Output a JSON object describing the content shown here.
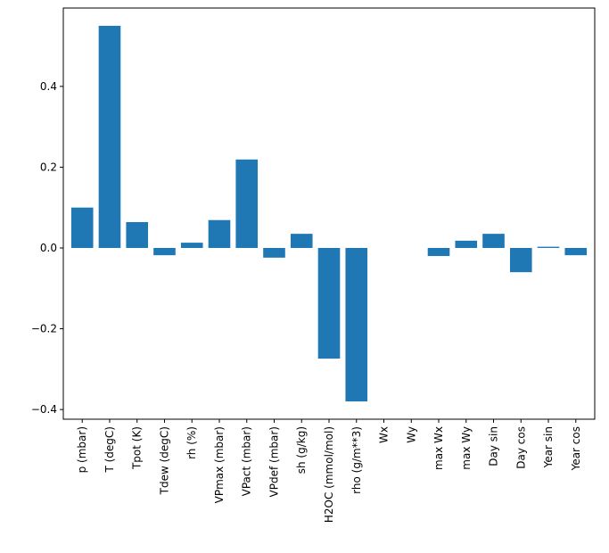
{
  "chart_data": {
    "type": "bar",
    "categories": [
      "p (mbar)",
      "T (degC)",
      "Tpot (K)",
      "Tdew (degC)",
      "rh (%)",
      "VPmax (mbar)",
      "VPact (mbar)",
      "VPdef (mbar)",
      "sh (g/kg)",
      "H2OC (mmol/mol)",
      "rho (g/m**3)",
      "Wx",
      "Wy",
      "max Wx",
      "max Wy",
      "Day sin",
      "Day cos",
      "Year sin",
      "Year cos"
    ],
    "values": [
      0.1,
      0.55,
      0.064,
      -0.018,
      0.013,
      0.069,
      0.219,
      -0.024,
      0.035,
      -0.274,
      -0.38,
      0,
      0,
      -0.02,
      0.018,
      0.035,
      -0.06,
      0.003,
      -0.018
    ],
    "color": "#1f77b4",
    "ylim": [
      -0.424,
      0.594
    ],
    "yticks": [
      {
        "value": -0.4,
        "label": "−0.4"
      },
      {
        "value": -0.2,
        "label": "−0.2"
      },
      {
        "value": 0,
        "label": "0.0"
      },
      0.2,
      0.4
    ]
  }
}
